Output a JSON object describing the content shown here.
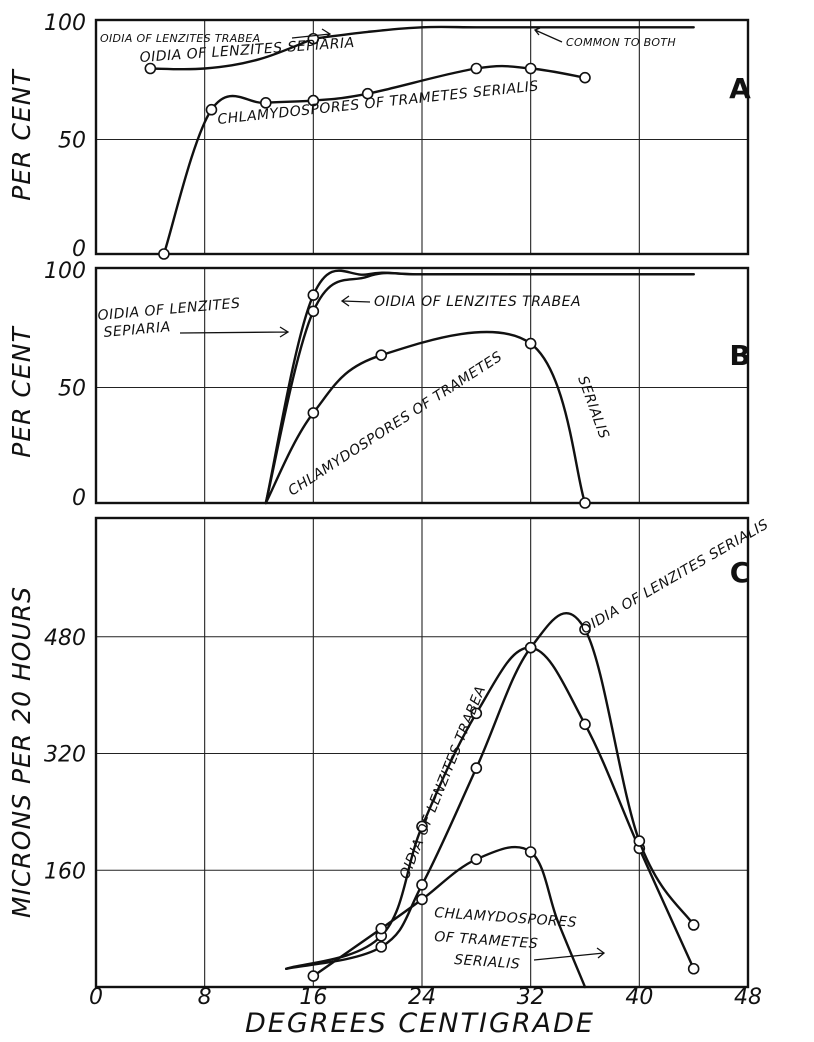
{
  "figure": {
    "x_axis_label": "DEGREES CENTIGRADE",
    "x_ticks": [
      "0",
      "8",
      "16",
      "24",
      "32",
      "40",
      "48"
    ]
  },
  "chart_data": [
    {
      "type": "line",
      "panel": "A",
      "ylabel": "PER CENT",
      "xlabel": "DEGREES CENTIGRADE",
      "xlim": [
        0,
        48
      ],
      "ylim": [
        0,
        100
      ],
      "y_ticks": [
        "0",
        "50",
        "100"
      ],
      "grid": true,
      "series": [
        {
          "name": "OIDIA OF LENZITES TRABEA",
          "x": [
            16,
            20,
            24,
            28,
            32,
            36,
            40,
            44
          ],
          "y": [
            94,
            97,
            99,
            99,
            99,
            99,
            99,
            99
          ],
          "markers": false
        },
        {
          "name": "OIDIA OF LENZITES SEPIARIA",
          "x": [
            4,
            8,
            12,
            16
          ],
          "y": [
            81,
            81,
            85,
            94
          ],
          "markers": [
            0,
            3
          ]
        },
        {
          "name": "CHLAMYDOSPORES OF TRAMETES SERIALIS",
          "x": [
            5,
            8.5,
            12.5,
            16,
            20,
            28,
            32,
            36
          ],
          "y": [
            0,
            63,
            66,
            67,
            70,
            81,
            81,
            77
          ],
          "markers": true
        }
      ],
      "annotations": [
        "OIDIA OF LENZITES TRABEA",
        "OIDIA OF LENZITES SEPIARIA",
        "COMMON TO BOTH",
        "CHLAMYDOSPORES OF TRAMETES SERIALIS"
      ],
      "panel_label": "A"
    },
    {
      "type": "line",
      "panel": "B",
      "ylabel": "PER CENT",
      "xlabel": "DEGREES CENTIGRADE",
      "xlim": [
        0,
        48
      ],
      "ylim": [
        0,
        100
      ],
      "y_ticks": [
        "0",
        "50",
        "100"
      ],
      "grid": true,
      "series": [
        {
          "name": "OIDIA OF LENZITES SEPIARIA",
          "x": [
            12.5,
            16,
            20,
            24,
            32,
            40,
            44
          ],
          "y": [
            0,
            90,
            99,
            99,
            99,
            99,
            99
          ],
          "markers": [
            1
          ]
        },
        {
          "name": "OIDIA OF LENZITES TRABEA",
          "x": [
            12.5,
            16,
            20,
            24,
            32,
            40,
            44
          ],
          "y": [
            0,
            83,
            98,
            99,
            99,
            99,
            99
          ],
          "markers": [
            1
          ]
        },
        {
          "name": "CHLAMYDOSPORES OF TRAMETES SERIALIS",
          "x": [
            12.5,
            16,
            21,
            32,
            36
          ],
          "y": [
            0,
            39,
            64,
            69,
            0
          ],
          "markers": [
            1,
            2,
            3,
            4
          ]
        }
      ],
      "annotations": [
        "OIDIA OF LENZITES SEPIARIA",
        "OIDIA OF LENZITES TRABEA",
        "CHLAMYDOSPORES OF TRAMETES SERIALIS"
      ],
      "panel_label": "B"
    },
    {
      "type": "line",
      "panel": "C",
      "ylabel": "MICRONS PER 20 HOURS",
      "xlabel": "DEGREES CENTIGRADE",
      "xlim": [
        0,
        48
      ],
      "ylim": [
        0,
        640
      ],
      "y_ticks": [
        "160",
        "320",
        "480"
      ],
      "grid": true,
      "series": [
        {
          "name": "OIDIA OF LENZITES TRABEA",
          "x": [
            14,
            21,
            24,
            28,
            32,
            36,
            40,
            44
          ],
          "y": [
            25,
            70,
            220,
            375,
            465,
            360,
            190,
            25
          ],
          "markers": [
            1,
            2,
            3,
            4,
            5,
            6,
            7
          ]
        },
        {
          "name": "OIDIA OF LENZITES SERIALIS",
          "x": [
            14,
            21,
            24,
            28,
            32,
            36,
            40,
            44
          ],
          "y": [
            25,
            55,
            140,
            300,
            465,
            490,
            200,
            85
          ],
          "markers": [
            1,
            2,
            3,
            4,
            5,
            6,
            7
          ]
        },
        {
          "name": "CHLAMYDOSPORES OF TRAMETES SERIALIS",
          "x": [
            16,
            21,
            24,
            28,
            32,
            34,
            36
          ],
          "y": [
            15,
            80,
            120,
            175,
            185,
            90,
            0
          ],
          "markers": [
            0,
            1,
            2,
            3,
            4
          ]
        }
      ],
      "annotations": [
        "OIDIA OF LENZITES TRABEA",
        "OIDIA OF LENZITES SERIALIS",
        "CHLAMYDOSPORES",
        "OF TRAMETES",
        "SERIALIS"
      ],
      "panel_label": "C"
    }
  ],
  "annotations": {
    "a_trabea": "OIDIA OF LENZITES TRABEA",
    "a_sepiaria": "OIDIA OF LENZITES SEPIARIA",
    "a_common": "COMMON TO BOTH",
    "a_chlamy": "CHLAMYDOSPORES OF TRAMETES SERIALIS",
    "b_sepiaria_1": "OIDIA OF LENZITES",
    "b_sepiaria_2": "SEPIARIA",
    "b_trabea": "OIDIA OF LENZITES TRABEA",
    "b_chlamy": "CHLAMYDOSPORES OF TRAMETES",
    "b_serialis": "SERIALIS",
    "c_trabea": "OIDIA OF LENZITES TRABEA",
    "c_oidia_top": "OIDIA OF LENZITES SERIALIS",
    "c_chlamy_1": "CHLAMYDOSPORES",
    "c_chlamy_2": "OF TRAMETES",
    "c_chlamy_3": "SERIALIS"
  },
  "colors": {
    "ink": "#111111",
    "paper": "#ffffff"
  }
}
